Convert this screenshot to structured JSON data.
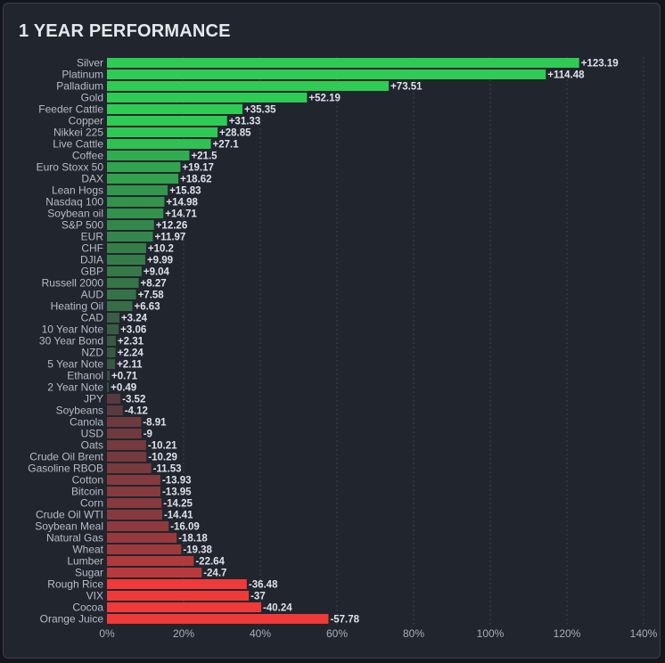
{
  "chart_data": {
    "type": "bar",
    "orientation": "horizontal",
    "title": "1 YEAR PERFORMANCE",
    "xlim": [
      0,
      140
    ],
    "xticks": [
      "0%",
      "20%",
      "40%",
      "60%",
      "80%",
      "100%",
      "120%",
      "140%"
    ],
    "xtick_values": [
      0,
      20,
      40,
      60,
      80,
      100,
      120,
      140
    ],
    "grid": true,
    "categories": [
      "Silver",
      "Platinum",
      "Palladium",
      "Gold",
      "Feeder Cattle",
      "Copper",
      "Nikkei 225",
      "Live Cattle",
      "Coffee",
      "Euro Stoxx 50",
      "DAX",
      "Lean Hogs",
      "Nasdaq 100",
      "Soybean oil",
      "S&P 500",
      "EUR",
      "CHF",
      "DJIA",
      "GBP",
      "Russell 2000",
      "AUD",
      "Heating Oil",
      "CAD",
      "10 Year Note",
      "30 Year Bond",
      "NZD",
      "5 Year Note",
      "Ethanol",
      "2 Year Note",
      "JPY",
      "Soybeans",
      "Canola",
      "USD",
      "Oats",
      "Crude Oil Brent",
      "Gasoline RBOB",
      "Cotton",
      "Bitcoin",
      "Corn",
      "Crude Oil WTI",
      "Soybean Meal",
      "Natural Gas",
      "Wheat",
      "Lumber",
      "Sugar",
      "Rough Rice",
      "VIX",
      "Cocoa",
      "Orange Juice"
    ],
    "values": [
      123.19,
      114.48,
      73.51,
      52.19,
      35.35,
      31.33,
      28.85,
      27.1,
      21.5,
      19.17,
      18.62,
      15.83,
      14.98,
      14.71,
      12.26,
      11.97,
      10.2,
      9.99,
      9.04,
      8.27,
      7.58,
      6.63,
      3.24,
      3.06,
      2.31,
      2.24,
      2.11,
      0.71,
      0.49,
      -3.52,
      -4.12,
      -8.91,
      -9,
      -10.21,
      -10.29,
      -11.53,
      -13.93,
      -13.95,
      -14.25,
      -14.41,
      -16.09,
      -18.18,
      -19.38,
      -22.64,
      -24.7,
      -36.48,
      -37,
      -40.24,
      -57.78
    ],
    "value_labels": [
      "+123.19",
      "+114.48",
      "+73.51",
      "+52.19",
      "+35.35",
      "+31.33",
      "+28.85",
      "+27.1",
      "+21.5",
      "+19.17",
      "+18.62",
      "+15.83",
      "+14.98",
      "+14.71",
      "+12.26",
      "+11.97",
      "+10.2",
      "+9.99",
      "+9.04",
      "+8.27",
      "+7.58",
      "+6.63",
      "+3.24",
      "+3.06",
      "+2.31",
      "+2.24",
      "+2.11",
      "+0.71",
      "+0.49",
      "-3.52",
      "-4.12",
      "-8.91",
      "-9",
      "-10.21",
      "-10.29",
      "-11.53",
      "-13.93",
      "-13.95",
      "-14.25",
      "-14.41",
      "-16.09",
      "-18.18",
      "-19.38",
      "-22.64",
      "-24.7",
      "-36.48",
      "-37",
      "-40.24",
      "-57.78"
    ],
    "colors": {
      "positive_strong": "#2ecc55",
      "positive_weak": "#3a4a40",
      "negative_weak": "#4a3a40",
      "negative_strong": "#f03a3a",
      "grid": "#3c4150"
    }
  }
}
